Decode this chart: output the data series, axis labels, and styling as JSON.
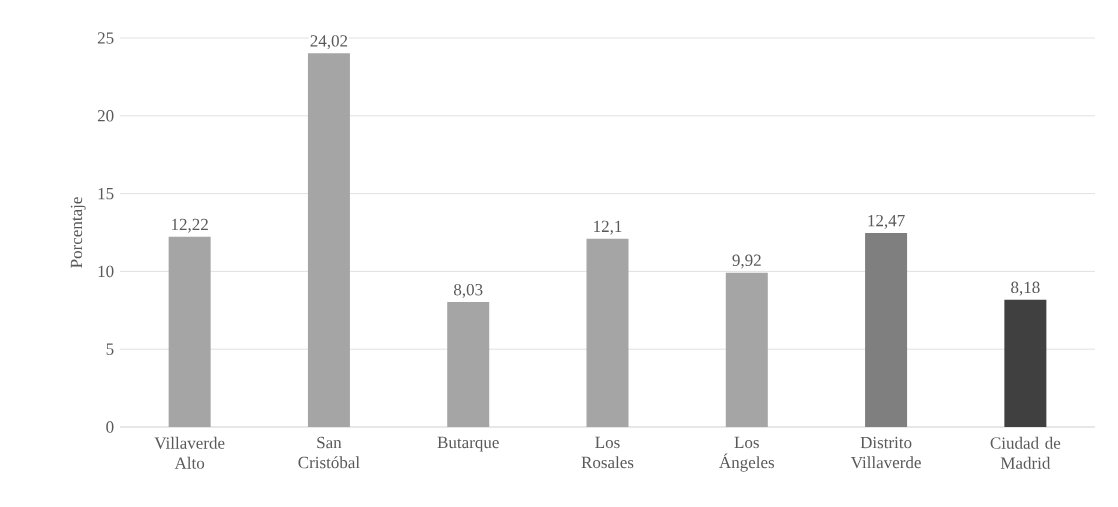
{
  "chart_data": {
    "type": "bar",
    "ylabel": "Porcentaje",
    "categories": [
      "Villaverde Alto",
      "San Cristóbal",
      "Butarque",
      "Los Rosales",
      "Los Ángeles",
      "Distrito Villaverde",
      "Ciudad de Madrid"
    ],
    "values": [
      12.22,
      24.02,
      8.03,
      12.1,
      9.92,
      12.47,
      8.18
    ],
    "value_labels": [
      "12,22",
      "24,02",
      "8,03",
      "12,1",
      "9,92",
      "12,47",
      "8,18"
    ],
    "colors": [
      "#a5a5a5",
      "#a5a5a5",
      "#a5a5a5",
      "#a5a5a5",
      "#a5a5a5",
      "#7f7f7f",
      "#404040"
    ],
    "ylim": [
      0,
      25
    ],
    "yticks": [
      0,
      5,
      10,
      15,
      20,
      25
    ],
    "grid": "y"
  }
}
